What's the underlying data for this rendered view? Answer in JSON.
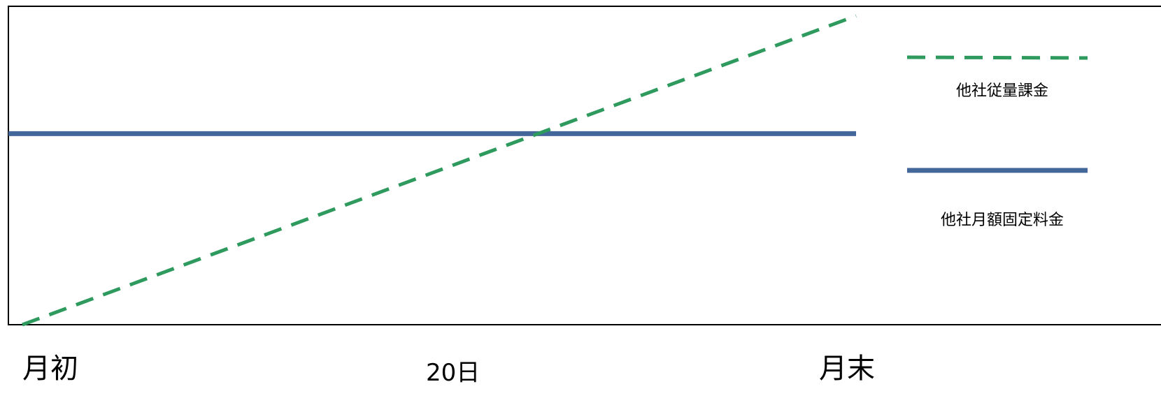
{
  "chart_data": {
    "type": "line",
    "x_categories": [
      "月初",
      "20日",
      "月末"
    ],
    "ylim": [
      0,
      100
    ],
    "grid": false,
    "legend_position": "right",
    "series": [
      {
        "name": "他社従量課金",
        "style": "dashed",
        "color": "#2e9a5e",
        "points": [
          {
            "x": "月初",
            "y": 0
          },
          {
            "x": "月末",
            "y": 97
          }
        ]
      },
      {
        "name": "他社月額固定料金",
        "style": "solid",
        "color": "#44679a",
        "points": [
          {
            "x": "月初",
            "y": 60
          },
          {
            "x": "月末",
            "y": 60
          }
        ]
      }
    ]
  }
}
